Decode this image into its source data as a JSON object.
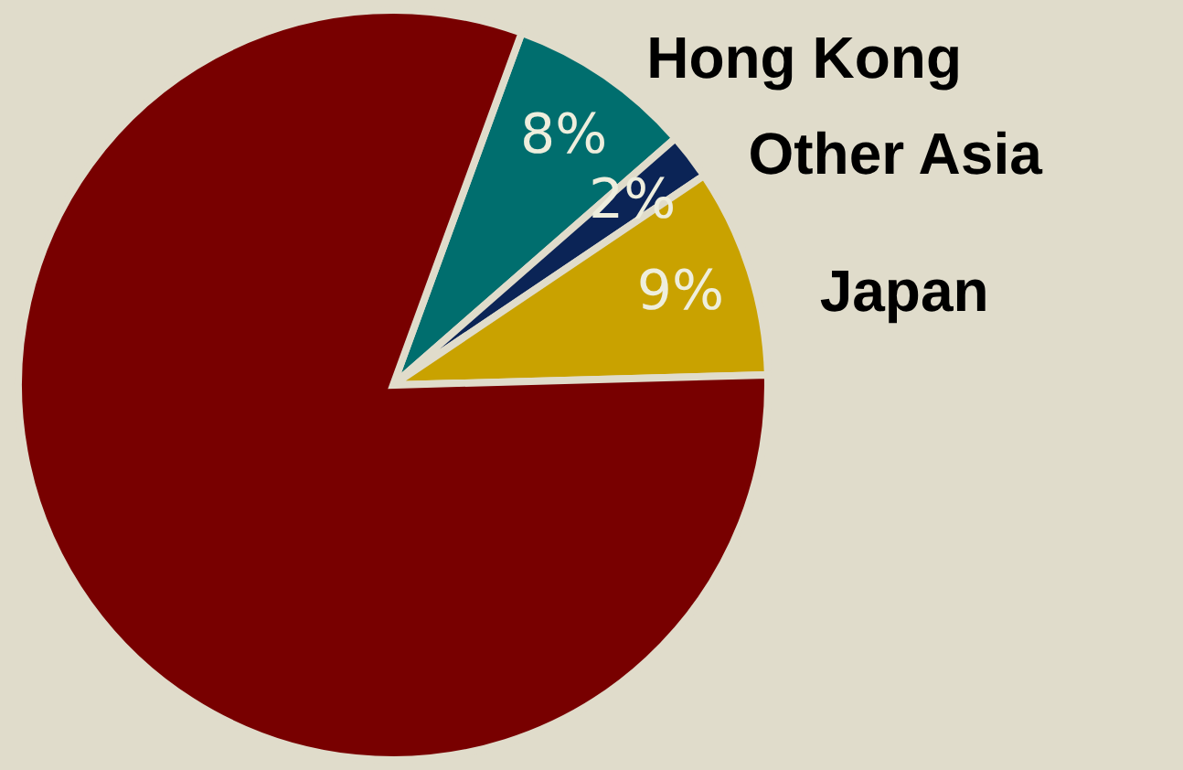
{
  "chart_data": {
    "type": "pie",
    "categories": [
      "Hong Kong",
      "Other Asia",
      "Japan",
      null
    ],
    "values": [
      8,
      2,
      9,
      81
    ],
    "colors": [
      "#006e6e",
      "#0b2456",
      "#c9a200",
      "#780000"
    ],
    "value_labels": [
      "8%",
      "2%",
      "9%",
      null
    ]
  }
}
